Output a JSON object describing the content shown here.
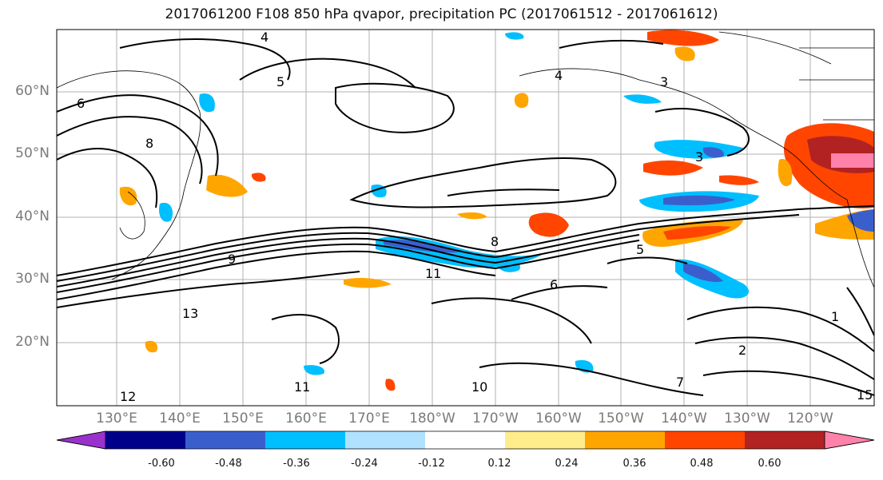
{
  "title": "2017061200 F108 850 hPa qvapor, precipitation PC (2017061512 - 2017061612)",
  "lat_labels": [
    "60°N",
    "50°N",
    "40°N",
    "30°N",
    "20°N"
  ],
  "lon_labels": [
    "130°E",
    "140°E",
    "150°E",
    "160°E",
    "170°E",
    "180°W",
    "170°W",
    "160°W",
    "150°W",
    "140°W",
    "130°W",
    "120°W"
  ],
  "contour_labels": [
    "4",
    "5",
    "6",
    "8",
    "3",
    "9",
    "11",
    "13",
    "10",
    "12",
    "7",
    "2",
    "1",
    "15"
  ],
  "colorbar": {
    "tick_labels": [
      "-0.60",
      "-0.48",
      "-0.36",
      "-0.24",
      "-0.12",
      "0.12",
      "0.24",
      "0.36",
      "0.48",
      "0.60"
    ],
    "colors": [
      "#9932CC",
      "#00008B",
      "#3A5FCD",
      "#00BFFF",
      "#B0E2FF",
      "#FFFFFF",
      "#FFEC8B",
      "#FFA500",
      "#FF4500",
      "#B22222",
      "#FF82AB"
    ]
  }
}
